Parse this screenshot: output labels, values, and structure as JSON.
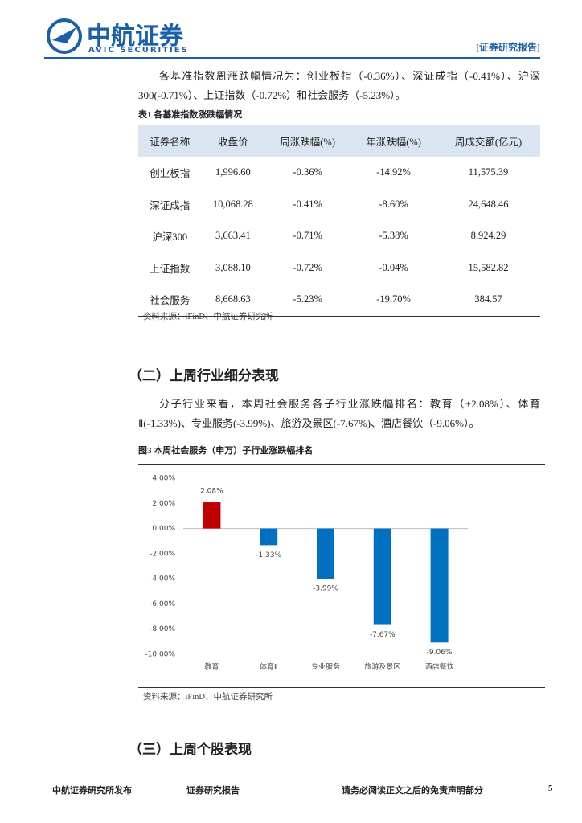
{
  "header": {
    "logo": "中航证券",
    "logo_en": "AVIC SECURITIES",
    "tag": "[证券研究报告]"
  },
  "paragraphs": [
    "各基准指数周涨跌幅情况为：创业板指（-0.36%）、深证成指（-0.41%）、沪深300(-0.71%）、上证指数（-0.72%）和社会服务（-5.23%）。",
    "分子行业来看，本周社会服务各子行业涨跌幅排名：教育（+2.08%）、体育Ⅱ(-1.33%)、专业服务(-3.99%)、旅游及景区(-7.67%)、酒店餐饮（-9.06%）。"
  ],
  "table": {
    "caption": "表1 各基准指数涨跌幅情况",
    "columns": [
      "证券名称",
      "收盘价",
      "周涨跌幅(%)",
      "年涨跌幅(%)",
      "周成交额(亿元)"
    ],
    "rows": [
      [
        "创业板指",
        "1,996.60",
        "-0.36%",
        "-14.92%",
        "11,575.39"
      ],
      [
        "深证成指",
        "10,068.28",
        "-0.41%",
        "-8.60%",
        "24,648.46"
      ],
      [
        "沪深300",
        "3,663.41",
        "-0.71%",
        "-5.38%",
        "8,924.29"
      ],
      [
        "上证指数",
        "3,088.10",
        "-0.72%",
        "-0.04%",
        "15,582.82"
      ],
      [
        "社会服务",
        "8,668.63",
        "-5.23%",
        "-19.70%",
        "384.57"
      ]
    ],
    "source": "资料来源：iFinD、中航证券研究所"
  },
  "sections": [
    "（二）上周行业细分表现",
    "（三）上周个股表现"
  ],
  "figure": {
    "caption": "图3 本周社会服务（申万）子行业涨跌幅排名",
    "source": "资料来源：iFinD、中航证券研究所"
  },
  "chart_data": {
    "type": "bar",
    "categories": [
      "教育",
      "体育Ⅱ",
      "专业服务",
      "旅游及景区",
      "酒店餐饮"
    ],
    "values": [
      2.08,
      -1.33,
      -3.99,
      -7.67,
      -9.06
    ],
    "value_labels": [
      "2.08%",
      "-1.33%",
      "-3.99%",
      "-7.67%",
      "-9.06%"
    ],
    "colors": [
      "#c00000",
      "#0070c0",
      "#0070c0",
      "#0070c0",
      "#0070c0"
    ],
    "ylim": [
      -10,
      4
    ],
    "yticks": [
      {
        "value": 4,
        "label": "4.00%"
      },
      {
        "value": 2,
        "label": "2.00%"
      },
      {
        "value": 0,
        "label": "0.00%"
      },
      {
        "value": -2,
        "label": "-2.00%"
      },
      {
        "value": -4,
        "label": "-4.00%"
      },
      {
        "value": -6,
        "label": "-6.00%"
      },
      {
        "value": -8,
        "label": "-8.00%"
      },
      {
        "value": -10,
        "label": "-10.00%"
      }
    ],
    "grid": false
  },
  "footer": {
    "left": "中航证券研究所发布",
    "middle": "证券研究报告",
    "right": "请务必阅读正文之后的免责声明部分",
    "page": "5"
  }
}
